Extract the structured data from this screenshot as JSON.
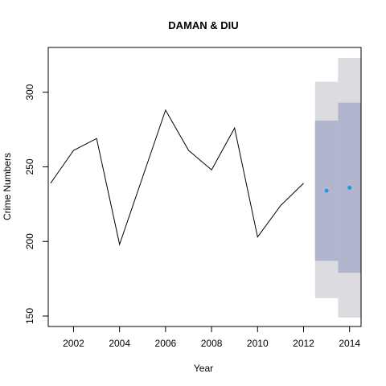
{
  "chart_data": {
    "type": "line",
    "title": "DAMAN & DIU",
    "xlabel": "Year",
    "ylabel": "Crime Numbers",
    "xlim": [
      2000.9,
      2014.5
    ],
    "ylim": [
      143,
      330
    ],
    "x_ticks": [
      2002,
      2004,
      2006,
      2008,
      2010,
      2012,
      2014
    ],
    "y_ticks": [
      150,
      200,
      250,
      300
    ],
    "grid": false,
    "series": [
      {
        "x": [
          2001,
          2002,
          2003,
          2004,
          2005,
          2006,
          2007,
          2008,
          2009,
          2010,
          2011,
          2012
        ],
        "values": [
          239,
          261,
          269,
          198,
          243,
          288,
          261,
          248,
          276,
          203,
          224,
          239
        ]
      }
    ],
    "forecast": {
      "x": [
        2013,
        2014
      ],
      "point": [
        234,
        236
      ],
      "interval_80": [
        [
          187,
          281
        ],
        [
          179,
          293
        ]
      ],
      "interval_95": [
        [
          162,
          307
        ],
        [
          149,
          323
        ]
      ],
      "colors": {
        "point": "#2297e6",
        "band_80": "#b1b5ce",
        "band_95": "#dbdbe0",
        "line": "#000000"
      }
    }
  }
}
